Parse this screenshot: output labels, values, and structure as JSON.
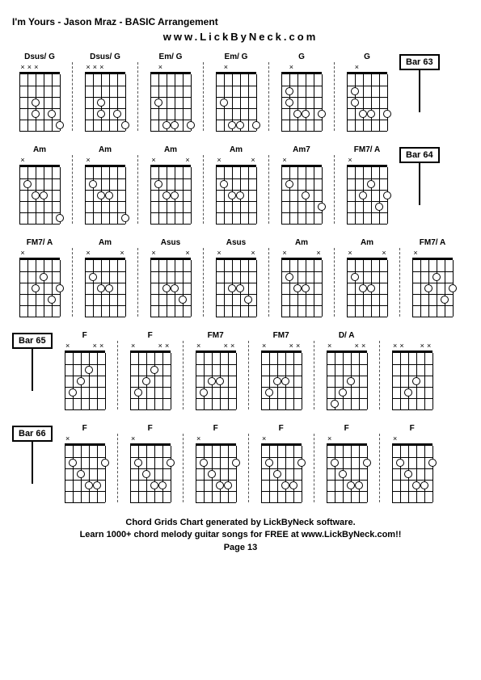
{
  "title": "I'm Yours - Jason Mraz - BASIC Arrangement",
  "subtitle": "www.LickByNeck.com",
  "footer_line1": "Chord Grids Chart generated by LickByNeck software.",
  "footer_line2": "Learn 1000+ chord melody guitar songs for FREE at www.LickByNeck.com!!",
  "page": "Page 13",
  "style": {
    "fretboard_width": 50,
    "fretboard_height": 70,
    "num_frets": 5,
    "num_strings": 6,
    "dot_size": 8,
    "colors": {
      "bg": "#ffffff",
      "line": "#000000",
      "dot_fill": "#ffffff"
    }
  },
  "bar_labels": {
    "b63": "Bar 63",
    "b64": "Bar 64",
    "b65": "Bar 65",
    "b66": "Bar 66"
  },
  "rows": [
    {
      "chords": [
        {
          "name": "Dsus/ G",
          "markers": [
            "x",
            "x",
            "x",
            "",
            "",
            ""
          ],
          "dots": [
            [
              3,
              3
            ],
            [
              4,
              3
            ],
            [
              4,
              5
            ],
            [
              5,
              6
            ]
          ]
        },
        {
          "name": "Dsus/ G",
          "markers": [
            "x",
            "x",
            "x",
            "",
            "",
            ""
          ],
          "dots": [
            [
              3,
              3
            ],
            [
              4,
              3
            ],
            [
              4,
              5
            ],
            [
              5,
              6
            ]
          ]
        },
        {
          "name": "Em/ G",
          "markers": [
            "",
            "x",
            "",
            "",
            "",
            ""
          ],
          "dots": [
            [
              3,
              2
            ],
            [
              5,
              3
            ],
            [
              5,
              4
            ],
            [
              5,
              6
            ]
          ]
        },
        {
          "name": "Em/ G",
          "markers": [
            "",
            "x",
            "",
            "",
            "",
            ""
          ],
          "dots": [
            [
              3,
              2
            ],
            [
              5,
              3
            ],
            [
              5,
              4
            ],
            [
              5,
              6
            ]
          ]
        },
        {
          "name": "G",
          "markers": [
            "",
            "x",
            "",
            "",
            "",
            ""
          ],
          "dots": [
            [
              2,
              2
            ],
            [
              3,
              2
            ],
            [
              4,
              3
            ],
            [
              4,
              4
            ],
            [
              4,
              6
            ]
          ]
        },
        {
          "name": "G",
          "markers": [
            "",
            "x",
            "",
            "",
            "",
            ""
          ],
          "dots": [
            [
              2,
              2
            ],
            [
              3,
              2
            ],
            [
              4,
              3
            ],
            [
              4,
              4
            ],
            [
              4,
              6
            ]
          ]
        }
      ],
      "bar_end": "b63"
    },
    {
      "chords": [
        {
          "name": "Am",
          "markers": [
            "x",
            "",
            "",
            "",
            "",
            ""
          ],
          "dots": [
            [
              2,
              2
            ],
            [
              3,
              3
            ],
            [
              3,
              4
            ],
            [
              5,
              6
            ]
          ]
        },
        {
          "name": "Am",
          "markers": [
            "x",
            "",
            "",
            "",
            "",
            ""
          ],
          "dots": [
            [
              2,
              2
            ],
            [
              3,
              3
            ],
            [
              3,
              4
            ],
            [
              5,
              6
            ]
          ]
        },
        {
          "name": "Am",
          "markers": [
            "x",
            "",
            "",
            "",
            "",
            "x"
          ],
          "dots": [
            [
              2,
              2
            ],
            [
              3,
              3
            ],
            [
              3,
              4
            ]
          ]
        },
        {
          "name": "Am",
          "markers": [
            "x",
            "",
            "",
            "",
            "",
            "x"
          ],
          "dots": [
            [
              2,
              2
            ],
            [
              3,
              3
            ],
            [
              3,
              4
            ]
          ]
        },
        {
          "name": "Am7",
          "markers": [
            "x",
            "",
            "",
            "",
            "",
            ""
          ],
          "dots": [
            [
              2,
              2
            ],
            [
              3,
              4
            ],
            [
              4,
              6
            ]
          ]
        },
        {
          "name": "FM7/ A",
          "markers": [
            "x",
            "",
            "",
            "",
            "",
            ""
          ],
          "dots": [
            [
              2,
              4
            ],
            [
              3,
              3
            ],
            [
              3,
              6
            ],
            [
              4,
              5
            ]
          ]
        }
      ],
      "bar_end": "b64"
    },
    {
      "chords": [
        {
          "name": "FM7/ A",
          "markers": [
            "x",
            "",
            "",
            "",
            "",
            ""
          ],
          "dots": [
            [
              2,
              4
            ],
            [
              3,
              3
            ],
            [
              3,
              6
            ],
            [
              4,
              5
            ]
          ]
        },
        {
          "name": "Am",
          "markers": [
            "x",
            "",
            "",
            "",
            "",
            "x"
          ],
          "dots": [
            [
              2,
              2
            ],
            [
              3,
              3
            ],
            [
              3,
              4
            ]
          ]
        },
        {
          "name": "Asus",
          "markers": [
            "x",
            "",
            "",
            "",
            "",
            "x"
          ],
          "dots": [
            [
              3,
              3
            ],
            [
              3,
              4
            ],
            [
              4,
              5
            ]
          ]
        },
        {
          "name": "Asus",
          "markers": [
            "x",
            "",
            "",
            "",
            "",
            "x"
          ],
          "dots": [
            [
              3,
              3
            ],
            [
              3,
              4
            ],
            [
              4,
              5
            ]
          ]
        },
        {
          "name": "Am",
          "markers": [
            "x",
            "",
            "",
            "",
            "",
            "x"
          ],
          "dots": [
            [
              2,
              2
            ],
            [
              3,
              3
            ],
            [
              3,
              4
            ]
          ]
        },
        {
          "name": "Am",
          "markers": [
            "x",
            "",
            "",
            "",
            "",
            "x"
          ],
          "dots": [
            [
              2,
              2
            ],
            [
              3,
              3
            ],
            [
              3,
              4
            ]
          ]
        },
        {
          "name": "FM7/ A",
          "markers": [
            "x",
            "",
            "",
            "",
            "",
            ""
          ],
          "dots": [
            [
              2,
              4
            ],
            [
              3,
              3
            ],
            [
              3,
              6
            ],
            [
              4,
              5
            ]
          ]
        }
      ]
    },
    {
      "bar_start": "b65",
      "chords": [
        {
          "name": "F",
          "markers": [
            "x",
            "",
            "",
            "",
            "x",
            "x"
          ],
          "dots": [
            [
              2,
              4
            ],
            [
              3,
              3
            ],
            [
              4,
              2
            ]
          ]
        },
        {
          "name": "F",
          "markers": [
            "x",
            "",
            "",
            "",
            "x",
            "x"
          ],
          "dots": [
            [
              2,
              4
            ],
            [
              3,
              3
            ],
            [
              4,
              2
            ]
          ]
        },
        {
          "name": "FM7",
          "markers": [
            "x",
            "",
            "",
            "",
            "x",
            "x"
          ],
          "dots": [
            [
              3,
              3
            ],
            [
              3,
              4
            ],
            [
              4,
              2
            ]
          ]
        },
        {
          "name": "FM7",
          "markers": [
            "x",
            "",
            "",
            "",
            "x",
            "x"
          ],
          "dots": [
            [
              3,
              3
            ],
            [
              3,
              4
            ],
            [
              4,
              2
            ]
          ]
        },
        {
          "name": "D/ A",
          "markers": [
            "x",
            "",
            "",
            "",
            "x",
            "x"
          ],
          "dots": [
            [
              3,
              4
            ],
            [
              4,
              3
            ],
            [
              5,
              2
            ]
          ]
        },
        {
          "name": "",
          "markers": [
            "x",
            "x",
            "",
            "",
            "x",
            "x"
          ],
          "dots": [
            [
              3,
              4
            ],
            [
              4,
              3
            ]
          ]
        }
      ]
    },
    {
      "bar_start": "b66",
      "chords": [
        {
          "name": "F",
          "markers": [
            "x",
            "",
            "",
            "",
            "",
            ""
          ],
          "dots": [
            [
              2,
              2
            ],
            [
              2,
              6
            ],
            [
              3,
              3
            ],
            [
              4,
              4
            ],
            [
              4,
              5
            ]
          ]
        },
        {
          "name": "F",
          "markers": [
            "x",
            "",
            "",
            "",
            "",
            ""
          ],
          "dots": [
            [
              2,
              2
            ],
            [
              2,
              6
            ],
            [
              3,
              3
            ],
            [
              4,
              4
            ],
            [
              4,
              5
            ]
          ]
        },
        {
          "name": "F",
          "markers": [
            "x",
            "",
            "",
            "",
            "",
            ""
          ],
          "dots": [
            [
              2,
              2
            ],
            [
              2,
              6
            ],
            [
              3,
              3
            ],
            [
              4,
              4
            ],
            [
              4,
              5
            ]
          ]
        },
        {
          "name": "F",
          "markers": [
            "x",
            "",
            "",
            "",
            "",
            ""
          ],
          "dots": [
            [
              2,
              2
            ],
            [
              2,
              6
            ],
            [
              3,
              3
            ],
            [
              4,
              4
            ],
            [
              4,
              5
            ]
          ]
        },
        {
          "name": "F",
          "markers": [
            "x",
            "",
            "",
            "",
            "",
            ""
          ],
          "dots": [
            [
              2,
              2
            ],
            [
              2,
              6
            ],
            [
              3,
              3
            ],
            [
              4,
              4
            ],
            [
              4,
              5
            ]
          ]
        },
        {
          "name": "F",
          "markers": [
            "x",
            "",
            "",
            "",
            "",
            ""
          ],
          "dots": [
            [
              2,
              2
            ],
            [
              2,
              6
            ],
            [
              3,
              3
            ],
            [
              4,
              4
            ],
            [
              4,
              5
            ]
          ]
        }
      ]
    }
  ]
}
